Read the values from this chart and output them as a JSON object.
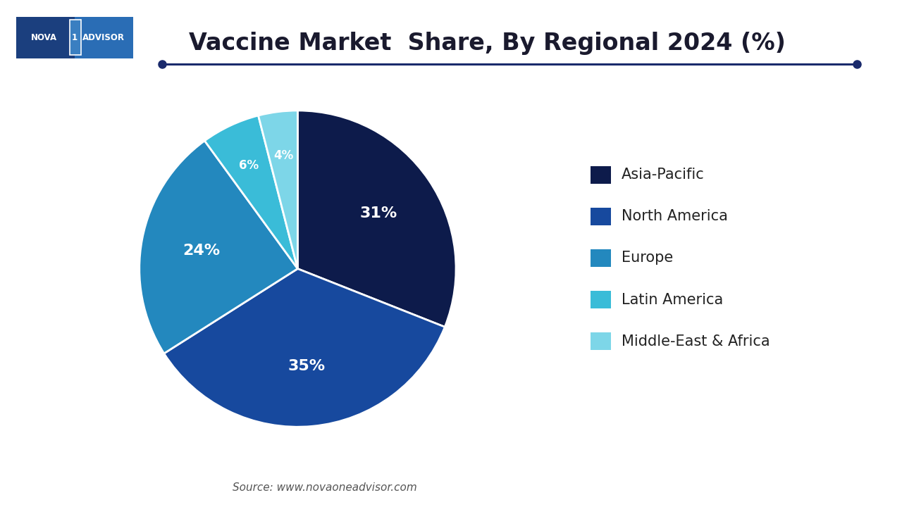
{
  "title": "Vaccine Market  Share, By Regional 2024 (%)",
  "labels": [
    "Asia-Pacific",
    "North America",
    "Europe",
    "Latin America",
    "Middle-East & Africa"
  ],
  "values": [
    31,
    35,
    24,
    6,
    4
  ],
  "colors": [
    "#0d1b4b",
    "#17499e",
    "#2388be",
    "#3abcd8",
    "#7dd6e8"
  ],
  "pct_labels": [
    "31%",
    "35%",
    "24%",
    "6%",
    "4%"
  ],
  "source_text": "Source: www.novaoneadvisor.com",
  "bg_color": "#ffffff",
  "title_fontsize": 24,
  "legend_fontsize": 15,
  "pct_fontsize": 16,
  "line_color": "#1a2a6c",
  "startangle": 90
}
